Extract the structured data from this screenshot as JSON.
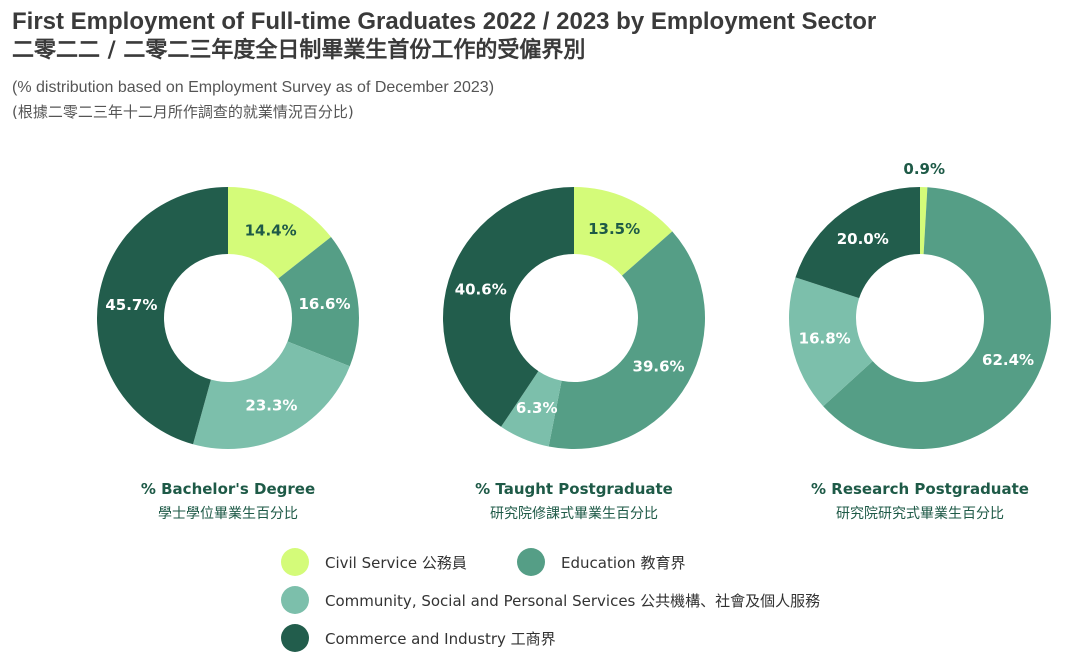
{
  "header": {
    "title": "First Employment of Full-time Graduates 2022 / 2023 by Employment Sector",
    "title_zh": "二零二二 / 二零二三年度全日制畢業生首份工作的受僱界別",
    "subtitle": "(% distribution based on Employment Survey as of December 2023)",
    "subtitle_zh": "(根據二零二三年十二月所作調查的就業情況百分比)"
  },
  "colors": {
    "civil_service": "#d4fb79",
    "education": "#559e86",
    "community": "#7cbfab",
    "commerce": "#225d4c"
  },
  "legend": [
    {
      "label": "Civil Service 公務員",
      "color": "#d4fb79"
    },
    {
      "label": "Education 教育界",
      "color": "#559e86"
    },
    {
      "label": "Community, Social and Personal Services 公共機構、社會及個人服務",
      "color": "#7cbfab"
    },
    {
      "label": "Commerce and Industry 工商界",
      "color": "#225d4c"
    }
  ],
  "chart_data": [
    {
      "type": "pie",
      "title": "% Bachelor's Degree",
      "title_zh": "學士學位畢業生百分比",
      "categories": [
        "Civil Service",
        "Education",
        "Community, Social and Personal Services",
        "Commerce and Industry"
      ],
      "values": [
        14.4,
        16.6,
        23.3,
        45.7
      ],
      "labels": [
        "14.4%",
        "16.6%",
        "23.3%",
        "45.7%"
      ]
    },
    {
      "type": "pie",
      "title": "% Taught Postgraduate",
      "title_zh": "研究院修課式畢業生百分比",
      "categories": [
        "Civil Service",
        "Education",
        "Community, Social and Personal Services",
        "Commerce and Industry"
      ],
      "values": [
        13.5,
        39.6,
        6.3,
        40.6
      ],
      "labels": [
        "13.5%",
        "39.6%",
        "6.3%",
        "40.6%"
      ]
    },
    {
      "type": "pie",
      "title": "% Research Postgraduate",
      "title_zh": "研究院研究式畢業生百分比",
      "categories": [
        "Civil Service",
        "Education",
        "Community, Social and Personal Services",
        "Commerce and Industry"
      ],
      "values": [
        0.9,
        62.4,
        16.8,
        20.0
      ],
      "labels": [
        "0.9%",
        "62.4%",
        "16.8%",
        "20.0%"
      ]
    }
  ]
}
